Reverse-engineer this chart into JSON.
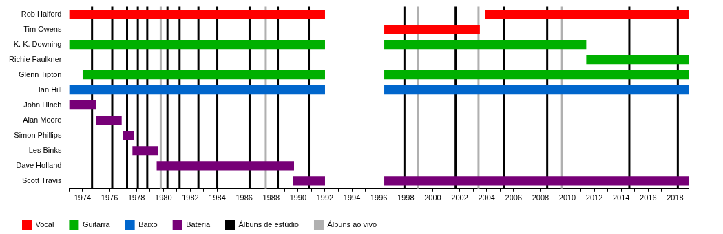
{
  "chart_data": {
    "type": "bar",
    "orientation": "horizontal",
    "legend": "bottom",
    "grid": false,
    "categories": [
      "Rob Halford",
      "Tim Owens",
      "K. K. Downing",
      "Richie Faulkner",
      "Glenn Tipton",
      "Ian Hill",
      "John Hinch",
      "Alan Moore",
      "Simon Phillips",
      "Les Binks",
      "Dave Holland",
      "Scott Travis"
    ],
    "xlim": [
      1973,
      2019
    ],
    "xticks": [
      {
        "value": 1973,
        "label": null
      },
      1974,
      {
        "value": 1975,
        "label": null
      },
      1976,
      {
        "value": 1977,
        "label": null
      },
      1978,
      {
        "value": 1979,
        "label": null
      },
      1980,
      {
        "value": 1981,
        "label": null
      },
      1982,
      {
        "value": 1983,
        "label": null
      },
      1984,
      {
        "value": 1985,
        "label": null
      },
      1986,
      {
        "value": 1987,
        "label": null
      },
      1988,
      {
        "value": 1989,
        "label": null
      },
      1990,
      {
        "value": 1991,
        "label": null
      },
      1992,
      {
        "value": 1993,
        "label": null
      },
      1994,
      {
        "value": 1995,
        "label": null
      },
      1996,
      {
        "value": 1997,
        "label": null
      },
      1998,
      {
        "value": 1999,
        "label": null
      },
      2000,
      {
        "value": 2001,
        "label": null
      },
      2002,
      {
        "value": 2003,
        "label": null
      },
      2004,
      {
        "value": 2005,
        "label": null
      },
      2006,
      {
        "value": 2007,
        "label": null
      },
      2008,
      {
        "value": 2009,
        "label": null
      },
      2010,
      {
        "value": 2011,
        "label": null
      },
      2012,
      {
        "value": 2013,
        "label": null
      },
      2014,
      {
        "value": 2015,
        "label": null
      },
      2016,
      {
        "value": 2017,
        "label": null
      },
      2018,
      {
        "value": 2019,
        "label": null
      }
    ],
    "series": [
      {
        "name": "Vocal",
        "color": "#ff0000",
        "base": [
          1973,
          1996.4,
          null,
          null,
          null,
          null,
          null,
          null,
          null,
          null,
          null,
          null
        ],
        "values": [
          19,
          7.1,
          null,
          null,
          null,
          null,
          null,
          null,
          null,
          null,
          null,
          null
        ]
      },
      {
        "color": "#ff0000",
        "base": [
          2003.9,
          null,
          null,
          null,
          null,
          null,
          null,
          null,
          null,
          null,
          null,
          null
        ],
        "values": [
          15.1,
          null,
          null,
          null,
          null,
          null,
          null,
          null,
          null,
          null,
          null,
          null
        ]
      },
      {
        "name": "Guitarra",
        "color": "#00b000",
        "base": [
          null,
          null,
          1973,
          2011.4,
          1974,
          null,
          null,
          null,
          null,
          null,
          null,
          null
        ],
        "values": [
          null,
          null,
          19,
          7.6,
          18,
          null,
          null,
          null,
          null,
          null,
          null,
          null
        ]
      },
      {
        "color": "#00b000",
        "base": [
          null,
          null,
          1996.4,
          null,
          1996.4,
          null,
          null,
          null,
          null,
          null,
          null,
          null
        ],
        "values": [
          null,
          null,
          15,
          null,
          22.6,
          null,
          null,
          null,
          null,
          null,
          null,
          null
        ]
      },
      {
        "name": "Baixo",
        "color": "#0066cc",
        "base": [
          null,
          null,
          null,
          null,
          null,
          1973,
          null,
          null,
          null,
          null,
          null,
          null
        ],
        "values": [
          null,
          null,
          null,
          null,
          null,
          19,
          null,
          null,
          null,
          null,
          null,
          null
        ]
      },
      {
        "color": "#0066cc",
        "base": [
          null,
          null,
          null,
          null,
          null,
          1996.4,
          null,
          null,
          null,
          null,
          null,
          null
        ],
        "values": [
          null,
          null,
          null,
          null,
          null,
          22.6,
          null,
          null,
          null,
          null,
          null,
          null
        ]
      },
      {
        "name": "Bateria",
        "color": "#770077",
        "base": [
          null,
          null,
          null,
          null,
          null,
          null,
          1973,
          1975,
          1977,
          1977.7,
          1979.5,
          1989.6
        ],
        "values": [
          null,
          null,
          null,
          null,
          null,
          null,
          2,
          1.9,
          0.8,
          1.9,
          10.2,
          2.4
        ]
      },
      {
        "color": "#770077",
        "base": [
          null,
          null,
          null,
          null,
          null,
          null,
          null,
          null,
          null,
          null,
          null,
          1996.4
        ],
        "values": [
          null,
          null,
          null,
          null,
          null,
          null,
          null,
          null,
          null,
          null,
          null,
          22.6
        ]
      }
    ],
    "ref_lines": [
      {
        "axis": "x",
        "value": 1974.7,
        "label": "Álbuns de estúdio",
        "color": "#000000"
      },
      {
        "axis": "x",
        "value": 1976.2,
        "color": "#000000"
      },
      {
        "axis": "x",
        "value": 1977.3,
        "color": "#000000"
      },
      {
        "axis": "x",
        "value": 1978.1,
        "color": "#000000"
      },
      {
        "axis": "x",
        "value": 1978.8,
        "color": "#000000"
      },
      {
        "axis": "x",
        "value": 1980.3,
        "color": "#000000"
      },
      {
        "axis": "x",
        "value": 1981.2,
        "color": "#000000"
      },
      {
        "axis": "x",
        "value": 1982.6,
        "color": "#000000"
      },
      {
        "axis": "x",
        "value": 1984.0,
        "color": "#000000"
      },
      {
        "axis": "x",
        "value": 1986.4,
        "color": "#000000"
      },
      {
        "axis": "x",
        "value": 1988.5,
        "color": "#000000"
      },
      {
        "axis": "x",
        "value": 1990.8,
        "color": "#000000"
      },
      {
        "axis": "x",
        "value": 1997.9,
        "color": "#000000"
      },
      {
        "axis": "x",
        "value": 2001.7,
        "color": "#000000"
      },
      {
        "axis": "x",
        "value": 2005.3,
        "color": "#000000"
      },
      {
        "axis": "x",
        "value": 2008.5,
        "color": "#000000"
      },
      {
        "axis": "x",
        "value": 2014.6,
        "color": "#000000"
      },
      {
        "axis": "x",
        "value": 2018.2,
        "color": "#000000"
      },
      {
        "axis": "x",
        "value": 1979.8,
        "label": "Álbuns ao vivo",
        "color": "#b0b0b0"
      },
      {
        "axis": "x",
        "value": 1987.6,
        "color": "#b0b0b0"
      },
      {
        "axis": "x",
        "value": 1998.9,
        "color": "#b0b0b0"
      },
      {
        "axis": "x",
        "value": 2003.4,
        "color": "#b0b0b0"
      },
      {
        "axis": "x",
        "value": 2009.6,
        "color": "#b0b0b0"
      }
    ]
  }
}
